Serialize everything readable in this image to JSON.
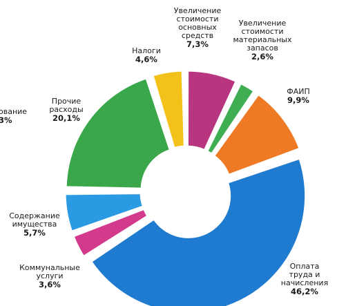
{
  "chart_data": {
    "type": "pie",
    "donut": true,
    "slices": [
      {
        "label": "Оплата\nтруда и\nначисления",
        "value_text": "46,2%",
        "value": 46.2,
        "color": "#1f7bd0"
      },
      {
        "label": "Коммунальные\nуслуги",
        "value_text": "3,6%",
        "value": 3.6,
        "color": "#d33a8c"
      },
      {
        "label": "Содержание\nимущества",
        "value_text": "5,7%",
        "value": 5.7,
        "color": "#2a9be3"
      },
      {
        "label": "Прочие\nрасходы",
        "value_text": "20,1%",
        "value": 20.1,
        "color": "#3aa84a"
      },
      {
        "label": "Налоги",
        "value_text": "4,6%",
        "value": 4.6,
        "color": "#f2c21b"
      },
      {
        "label": "Увеличение\nстоимости\nосновных\nсредств",
        "value_text": "7,3%",
        "value": 7.3,
        "color": "#b8357f"
      },
      {
        "label": "Увеличение\nстоимости\nматериальных\nзапасов",
        "value_text": "2,6%",
        "value": 2.6,
        "color": "#3fae53"
      },
      {
        "label": "ФАИП",
        "value_text": "9,9%",
        "value": 9.9,
        "color": "#ef7a26"
      }
    ],
    "partial_label": {
      "name": "ование",
      "value_text": "3%"
    }
  }
}
